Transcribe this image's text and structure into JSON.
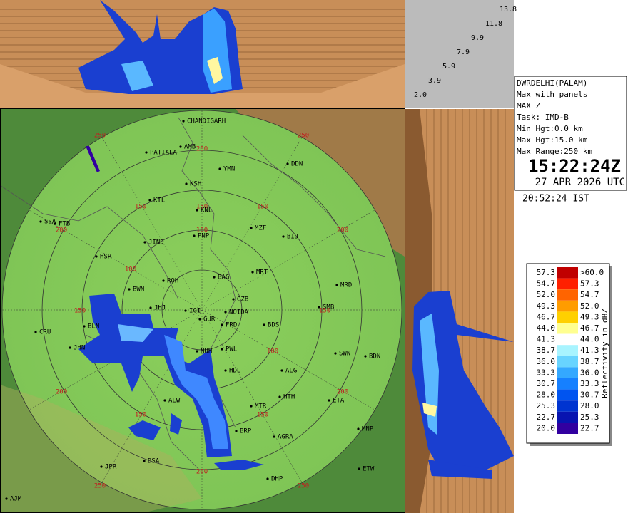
{
  "top_panel": {
    "height_labels": [
      "13.8",
      "11.8",
      "9.9",
      "7.9",
      "5.9",
      "3.9",
      "2.0"
    ]
  },
  "info": {
    "lines": [
      "DWRDELHI(PALAM)",
      "Max with panels",
      "MAX_Z",
      "Task: IMD-B",
      "Min Hgt:0.0 km",
      "Max Hgt:15.0 km",
      "Max Range:250 km"
    ],
    "time_utc": "15:22:24Z",
    "date_utc": "27 APR 2026 UTC",
    "time_ist": "20:52:24 IST"
  },
  "legend": {
    "title": "Reflectivity in dBZ",
    "rows": [
      {
        "low": "57.3",
        "high": ">60.0",
        "color": "#c00000"
      },
      {
        "low": "54.7",
        "high": "57.3",
        "color": "#ff2000"
      },
      {
        "low": "52.0",
        "high": "54.7",
        "color": "#ff6400"
      },
      {
        "low": "49.3",
        "high": "52.0",
        "color": "#ff9c00"
      },
      {
        "low": "46.7",
        "high": "49.3",
        "color": "#ffd000"
      },
      {
        "low": "44.0",
        "high": "46.7",
        "color": "#ffff90"
      },
      {
        "low": "41.3",
        "high": "44.0",
        "color": "#ffffff"
      },
      {
        "low": "38.7",
        "high": "41.3",
        "color": "#a8f4ff"
      },
      {
        "low": "36.0",
        "high": "38.7",
        "color": "#68d4ff"
      },
      {
        "low": "33.3",
        "high": "36.0",
        "color": "#34a8ff"
      },
      {
        "low": "30.7",
        "high": "33.3",
        "color": "#1680ff"
      },
      {
        "low": "28.0",
        "high": "30.7",
        "color": "#0054f0"
      },
      {
        "low": "25.3",
        "high": "28.0",
        "color": "#0034d0"
      },
      {
        "low": "22.7",
        "high": "25.3",
        "color": "#0814b0"
      },
      {
        "low": "20.0",
        "high": "22.7",
        "color": "#3200a0"
      }
    ]
  },
  "map": {
    "range_labels": [
      "250",
      "250",
      "200",
      "200",
      "200",
      "150",
      "150",
      "150",
      "100",
      "100",
      "150",
      "150",
      "100",
      "200",
      "200",
      "150",
      "150",
      "200",
      "250",
      "250"
    ],
    "places": [
      "CHANDIGARH",
      "PATIALA",
      "AMB",
      "DDN",
      "YMN",
      "KSH",
      "KTL",
      "KNL",
      "SSA",
      "FTB",
      "PNP",
      "MZF",
      "BIJ",
      "JIND",
      "HSR",
      "BAG",
      "MRT",
      "ROH",
      "BWN",
      "MRD",
      "GZB",
      "JHJ",
      "IGI",
      "NOIDA",
      "SMB",
      "GUR",
      "FRD",
      "BDS",
      "BLN",
      "CRU",
      "JHN",
      "PWL",
      "NUH",
      "SWN",
      "BDN",
      "ALG",
      "HDL",
      "HTH",
      "ETA",
      "ALW",
      "MTR",
      "BRP",
      "AGRA",
      "MNP",
      "JPR",
      "DSA",
      "DHP",
      "ETW",
      "AJM"
    ]
  }
}
